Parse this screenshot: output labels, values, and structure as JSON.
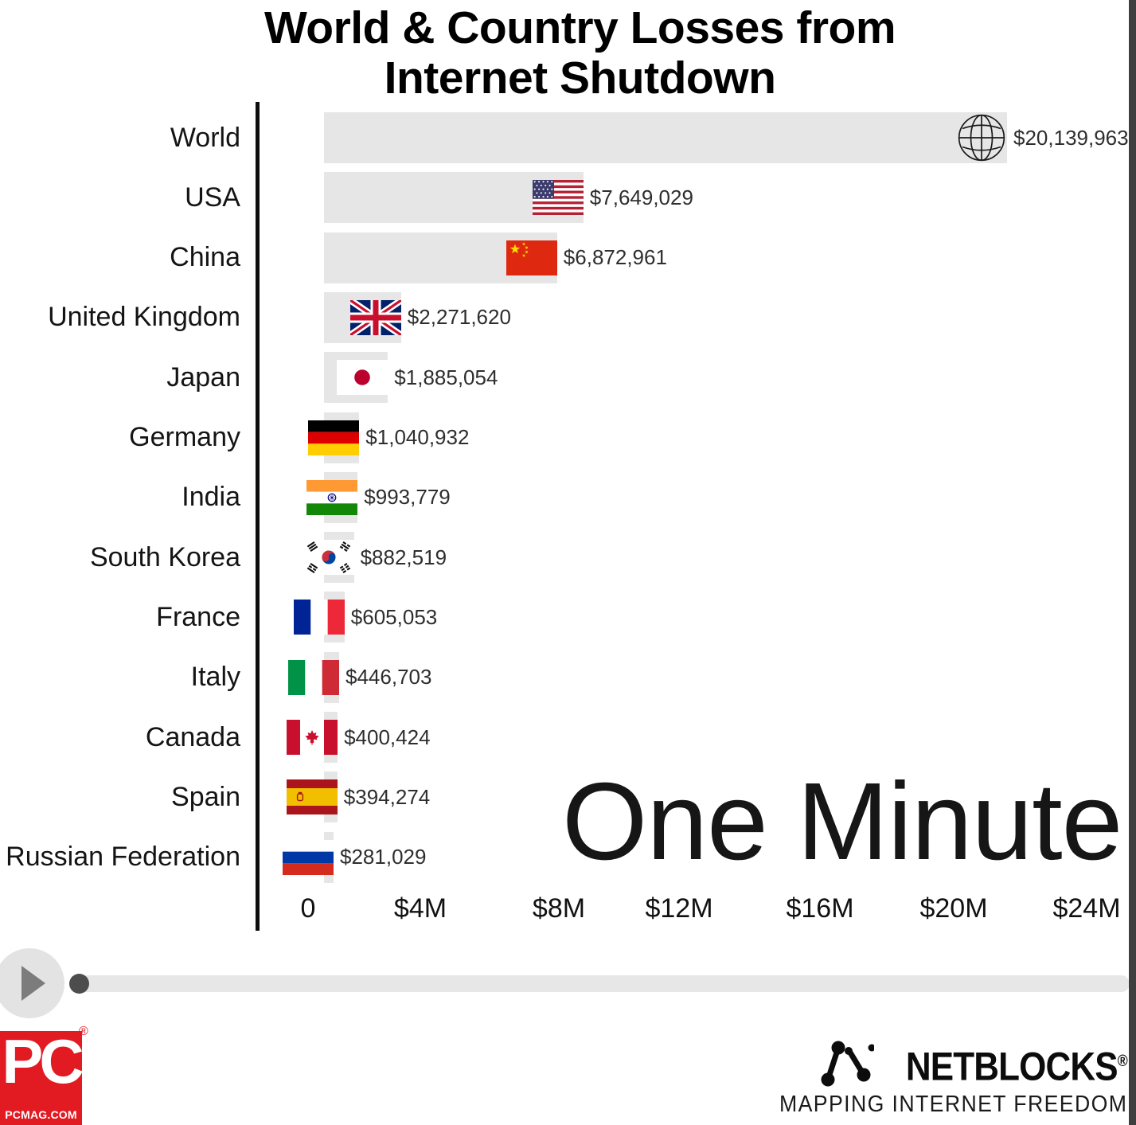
{
  "title": {
    "line1": "World & Country Losses from",
    "line2": "Internet Shutdown"
  },
  "overlay_label": "One Minute",
  "chart_data": {
    "type": "bar",
    "orientation": "horizontal",
    "title": "World & Country Losses from Internet Shutdown",
    "subtitle_frame": "One Minute",
    "unit": "USD",
    "grid": false,
    "legend": false,
    "categories": [
      "World",
      "USA",
      "China",
      "United Kingdom",
      "Japan",
      "Germany",
      "India",
      "South Korea",
      "France",
      "Italy",
      "Canada",
      "Spain",
      "Russian Federation"
    ],
    "values": [
      20139963,
      7649029,
      6872961,
      2271620,
      1885054,
      1040932,
      993779,
      882519,
      605053,
      446703,
      400424,
      394274,
      281029
    ],
    "value_labels": [
      "$20,139,963",
      "$7,649,029",
      "$6,872,961",
      "$2,271,620",
      "$1,885,054",
      "$1,040,932",
      "$993,779",
      "$882,519",
      "$605,053",
      "$446,703",
      "$400,424",
      "$394,274",
      "$281,029"
    ],
    "icons": [
      "globe-icon",
      "usa-flag",
      "china-flag",
      "uk-flag",
      "japan-flag",
      "germany-flag",
      "india-flag",
      "south-korea-flag",
      "france-flag",
      "italy-flag",
      "canada-flag",
      "spain-flag",
      "russia-flag"
    ],
    "x_ticks": [
      "0",
      "$4M",
      "$8M",
      "$12M",
      "$16M",
      "$20M",
      "$24M"
    ],
    "xlim": [
      0,
      24000000
    ],
    "xlabel": "",
    "ylabel": "",
    "bar_color": "#e6e6e6"
  },
  "player": {
    "state": "paused",
    "progress_percent": 0.5
  },
  "footer": {
    "pcmag_short": "PC",
    "pcmag_sub": "PCMAG.COM",
    "pcmag_reg": "®",
    "pcmag_color": "#E21A22",
    "netblocks_name": "NETBLOCKS",
    "netblocks_reg": "®",
    "netblocks_tagline": "MAPPING INTERNET FREEDOM"
  }
}
